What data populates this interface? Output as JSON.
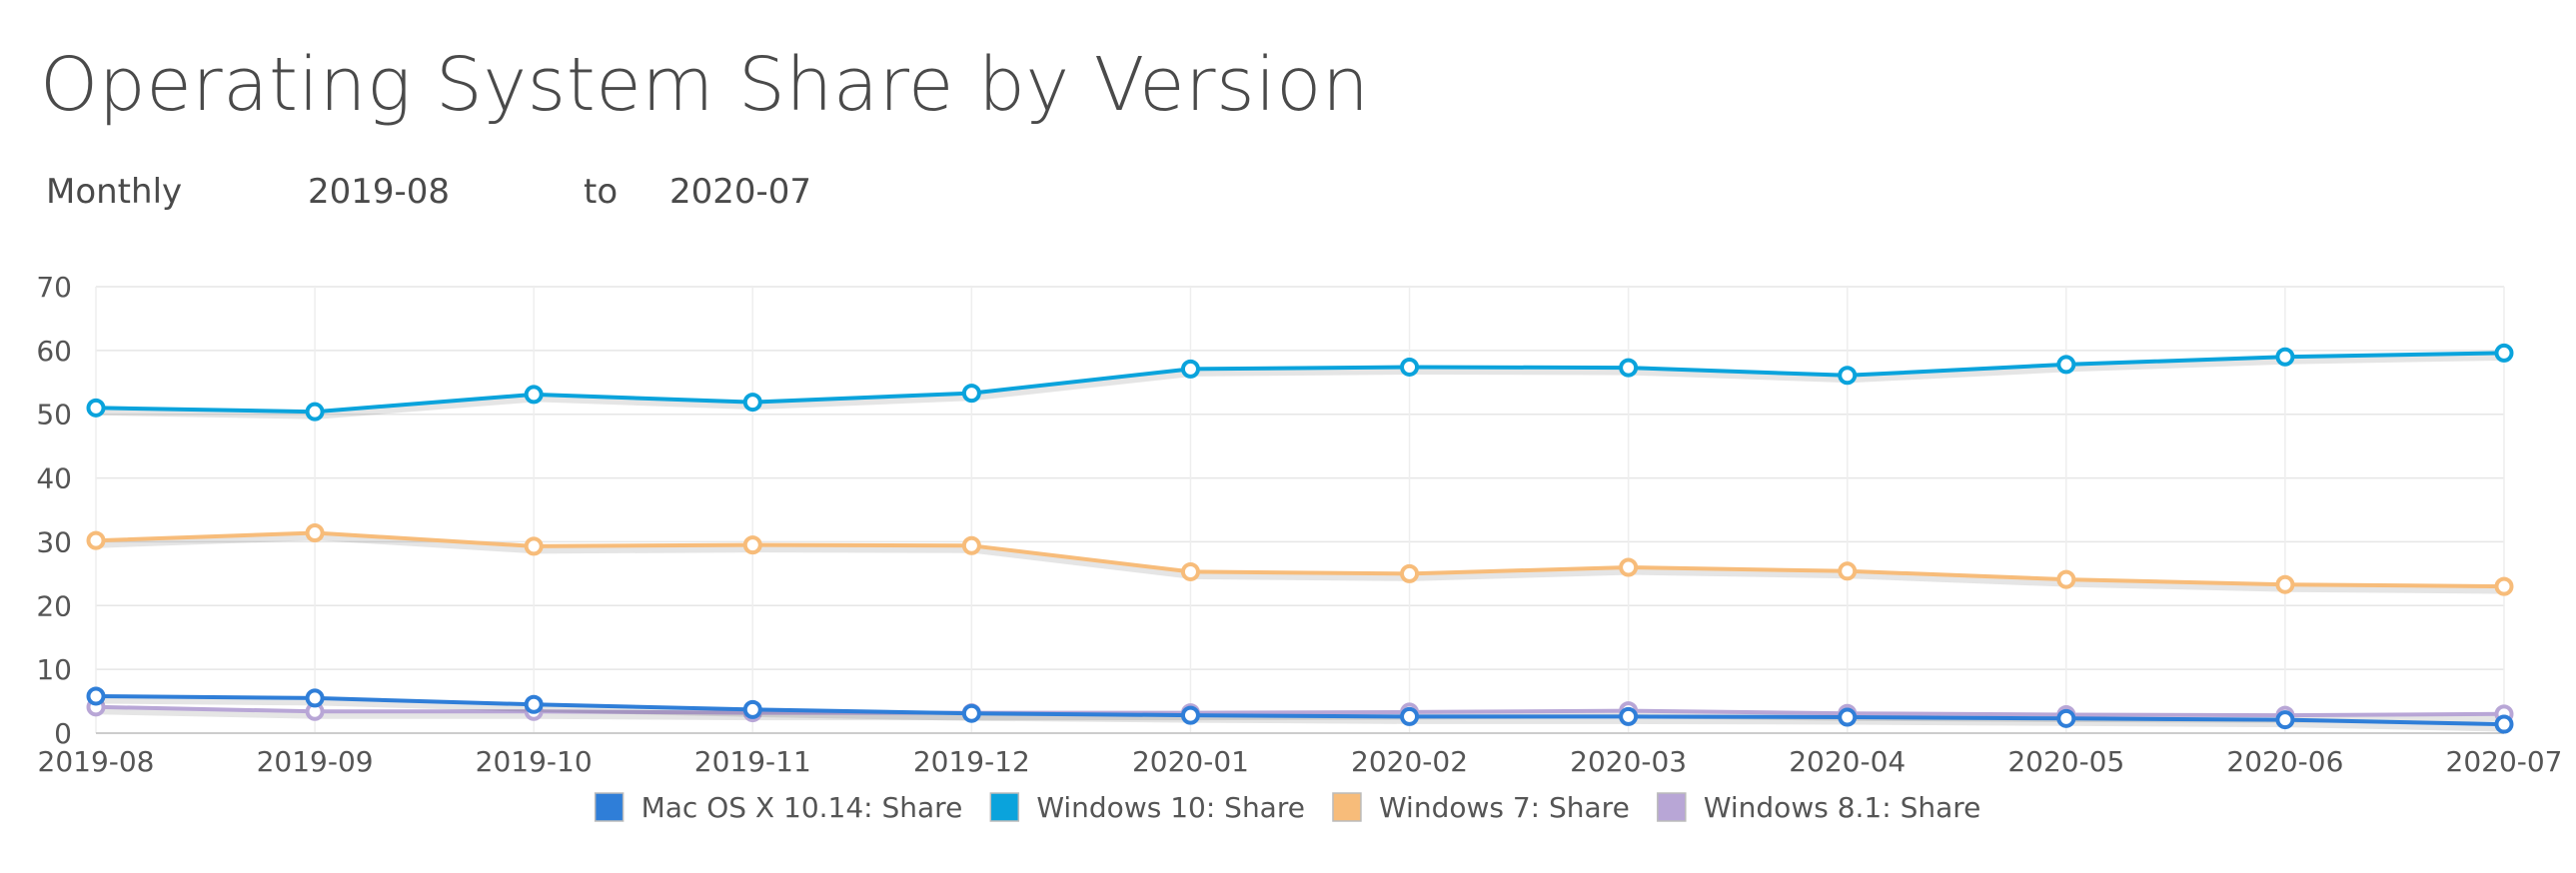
{
  "page": {
    "title": "Operating System Share by Version"
  },
  "controls": {
    "period": "Monthly",
    "from": "2019-08",
    "to_label": "to",
    "to": "2020-07"
  },
  "chart_data": {
    "type": "line",
    "title": "",
    "xlabel": "",
    "ylabel": "",
    "ylim": [
      0,
      70
    ],
    "yticks": [
      0,
      10,
      20,
      30,
      40,
      50,
      60,
      70
    ],
    "grid": true,
    "legend_position": "bottom",
    "categories": [
      "2019-08",
      "2019-09",
      "2019-10",
      "2019-11",
      "2019-12",
      "2020-01",
      "2020-02",
      "2020-03",
      "2020-04",
      "2020-05",
      "2020-06",
      "2020-07"
    ],
    "series": [
      {
        "name": "Mac OS X 10.14: Share",
        "color": "#2f7ed8",
        "values": [
          5.8,
          5.5,
          4.5,
          3.7,
          3.1,
          2.8,
          2.6,
          2.6,
          2.5,
          2.3,
          2.1,
          1.4
        ]
      },
      {
        "name": "Windows 10: Share",
        "color": "#0aa3dc",
        "values": [
          51.0,
          50.4,
          53.1,
          51.9,
          53.3,
          57.1,
          57.4,
          57.3,
          56.1,
          57.8,
          59.0,
          59.6
        ]
      },
      {
        "name": "Windows 7: Share",
        "color": "#f7bc7a",
        "values": [
          30.2,
          31.4,
          29.3,
          29.5,
          29.4,
          25.3,
          25.0,
          26.0,
          25.4,
          24.1,
          23.3,
          23.0
        ]
      },
      {
        "name": "Windows 8.1: Share",
        "color": "#b8a6d6",
        "values": [
          4.1,
          3.4,
          3.4,
          3.2,
          3.2,
          3.2,
          3.3,
          3.5,
          3.1,
          2.9,
          2.8,
          3.0
        ]
      }
    ]
  }
}
